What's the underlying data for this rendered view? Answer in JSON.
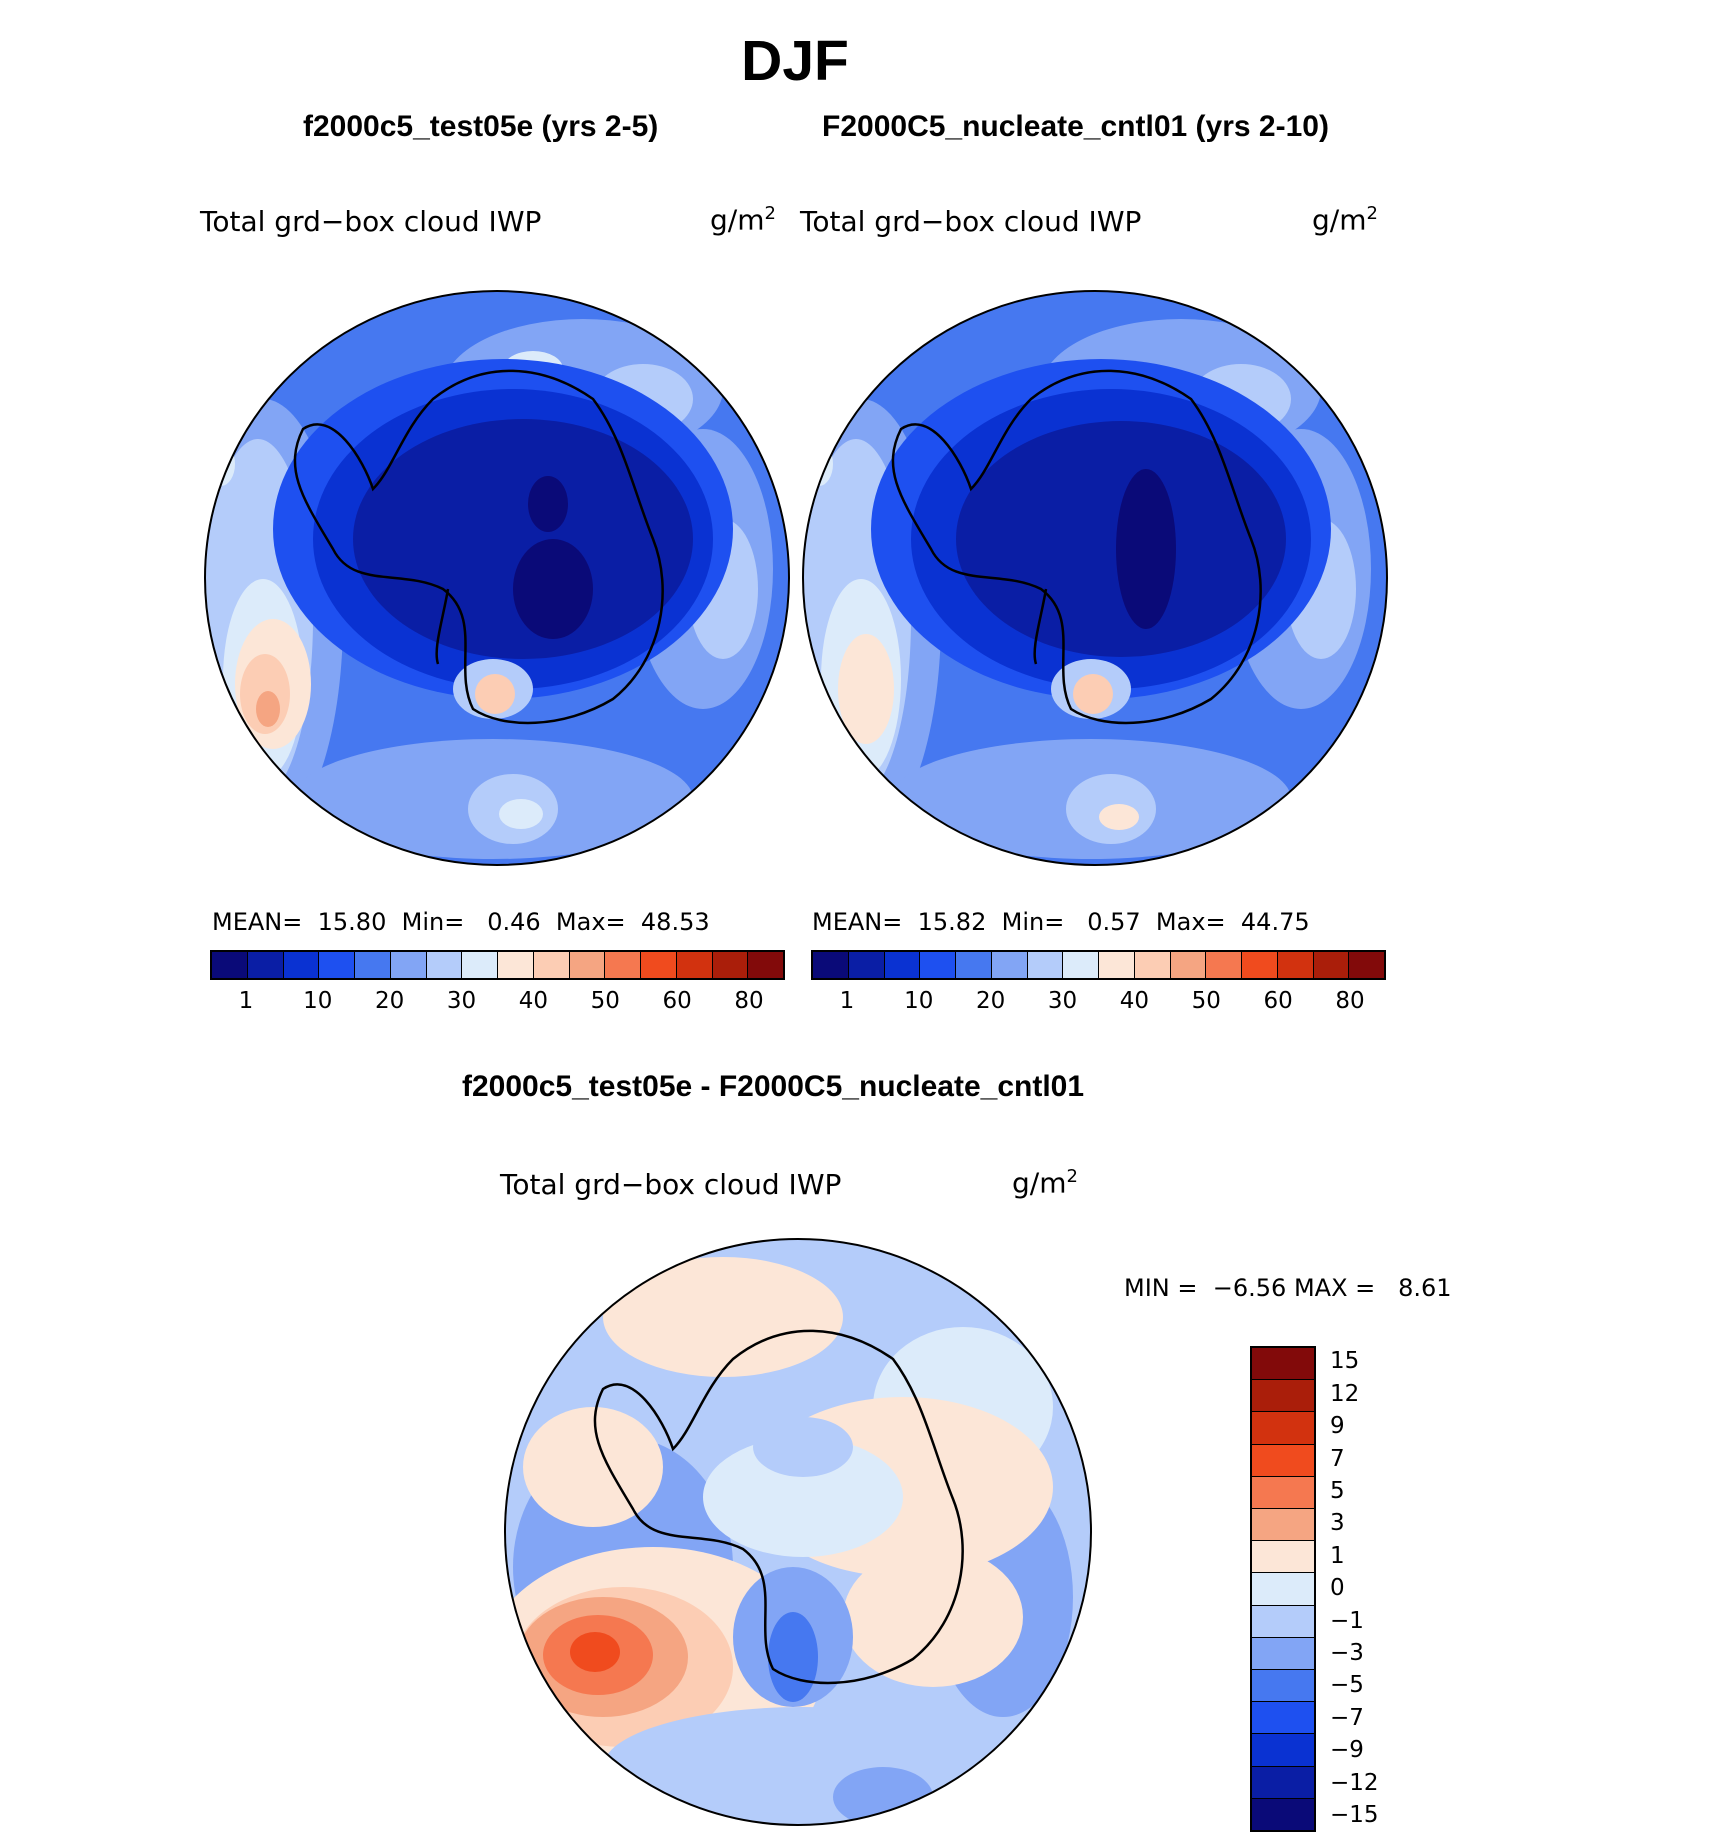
{
  "title": "DJF",
  "panels": [
    {
      "case": "f2000c5_test05e (yrs 2-5)",
      "variable": "Total grd−box cloud IWP",
      "units": "g/m",
      "units_sup": "2",
      "mean_label": "MEAN=",
      "mean": "15.80",
      "min_label": "Min=",
      "min": "0.46",
      "max_label": "Max=",
      "max": "48.53"
    },
    {
      "case": "F2000C5_nucleate_cntl01 (yrs 2-10)",
      "variable": "Total grd−box cloud IWP",
      "units": "g/m",
      "units_sup": "2",
      "mean_label": "MEAN=",
      "mean": "15.82",
      "min_label": "Min=",
      "min": "0.57",
      "max_label": "Max=",
      "max": "44.75"
    }
  ],
  "diff": {
    "title": "f2000c5_test05e - F2000C5_nucleate_cntl01",
    "variable": "Total grd−box cloud IWP",
    "units": "g/m",
    "units_sup": "2",
    "min_label": "MIN =",
    "min": "−6.56",
    "max_label": "MAX =",
    "max": "8.61"
  },
  "colorbar_main": {
    "colors": [
      "#0a0a78",
      "#0a1ea5",
      "#0a32d2",
      "#1e50f0",
      "#4678f0",
      "#82a5f5",
      "#b4ccfa",
      "#dcebfa",
      "#fce6d7",
      "#fccdb4",
      "#f5a582",
      "#f57850",
      "#f04b1e",
      "#d2320f",
      "#aa1e0a",
      "#820a0a"
    ],
    "tick_labels": [
      "1",
      "10",
      "20",
      "30",
      "40",
      "50",
      "60",
      "80"
    ]
  },
  "colorbar_diff": {
    "colors": [
      "#820a0a",
      "#aa1e0a",
      "#d2320f",
      "#f04b1e",
      "#f57850",
      "#f5a582",
      "#fce6d7",
      "#dcebfa",
      "#b4ccfa",
      "#82a5f5",
      "#4678f0",
      "#1e50f0",
      "#0a32d2",
      "#0a1ea5",
      "#0a0a78"
    ],
    "tick_labels": [
      "15",
      "12",
      "9",
      "7",
      "5",
      "3",
      "1",
      "0",
      "−1",
      "−3",
      "−5",
      "−7",
      "−9",
      "−12",
      "−15"
    ]
  },
  "map_colors": {
    "deep": "#0a0a78",
    "d1": "#0a1ea5",
    "d2": "#0a32d2",
    "d3": "#1e50f0",
    "d4": "#4678f0",
    "l1": "#82a5f5",
    "l2": "#b4ccfa",
    "l3": "#dcebfa",
    "w1": "#fce6d7",
    "w2": "#fccdb4",
    "w3": "#f5a582",
    "w4": "#f57850",
    "w5": "#f04b1e"
  }
}
